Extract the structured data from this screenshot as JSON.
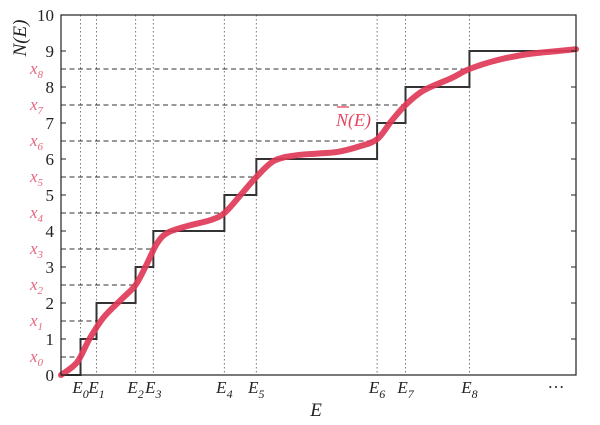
{
  "chart_data": {
    "type": "line",
    "xlabel": "E",
    "ylabel": "N(E)",
    "xlim": [
      0,
      14.5
    ],
    "ylim": [
      0,
      10
    ],
    "y_ticks": [
      "0",
      "1",
      "2",
      "3",
      "4",
      "5",
      "6",
      "7",
      "8",
      "9",
      "10"
    ],
    "energy_labels": [
      {
        "main": "E",
        "sub": "0",
        "x": 0.55
      },
      {
        "main": "E",
        "sub": "1",
        "x": 1.0
      },
      {
        "main": "E",
        "sub": "2",
        "x": 2.1
      },
      {
        "main": "E",
        "sub": "3",
        "x": 2.6
      },
      {
        "main": "E",
        "sub": "4",
        "x": 4.6
      },
      {
        "main": "E",
        "sub": "5",
        "x": 5.5
      },
      {
        "main": "E",
        "sub": "6",
        "x": 8.9
      },
      {
        "main": "E",
        "sub": "7",
        "x": 9.7
      },
      {
        "main": "E",
        "sub": "8",
        "x": 11.5
      }
    ],
    "ellipsis": "…",
    "x_labels": [
      {
        "main": "x",
        "sub": "0",
        "y": 0.5
      },
      {
        "main": "x",
        "sub": "1",
        "y": 1.5
      },
      {
        "main": "x",
        "sub": "2",
        "y": 2.5
      },
      {
        "main": "x",
        "sub": "3",
        "y": 3.5
      },
      {
        "main": "x",
        "sub": "4",
        "y": 4.5
      },
      {
        "main": "x",
        "sub": "5",
        "y": 5.5
      },
      {
        "main": "x",
        "sub": "6",
        "y": 6.5
      },
      {
        "main": "x",
        "sub": "7",
        "y": 7.5
      },
      {
        "main": "x",
        "sub": "8",
        "y": 8.5
      }
    ],
    "series": [
      {
        "name": "N(E)",
        "kind": "step",
        "color": "#333333",
        "steps_x": [
          0.55,
          1.0,
          2.1,
          2.6,
          4.6,
          5.5,
          8.9,
          9.7,
          11.5
        ],
        "x_end": 14.5
      },
      {
        "name": "N̄(E)",
        "kind": "smooth",
        "color": "#e03a57",
        "label_main": "N",
        "label_rest": "(E)",
        "points": [
          [
            0.0,
            0.0
          ],
          [
            0.45,
            0.35
          ],
          [
            0.8,
            1.0
          ],
          [
            1.2,
            1.6
          ],
          [
            1.7,
            2.1
          ],
          [
            2.1,
            2.5
          ],
          [
            2.4,
            3.05
          ],
          [
            2.7,
            3.65
          ],
          [
            3.0,
            3.95
          ],
          [
            3.6,
            4.15
          ],
          [
            4.2,
            4.3
          ],
          [
            4.6,
            4.5
          ],
          [
            5.1,
            5.05
          ],
          [
            5.5,
            5.5
          ],
          [
            6.0,
            5.95
          ],
          [
            6.6,
            6.1
          ],
          [
            7.2,
            6.15
          ],
          [
            7.8,
            6.2
          ],
          [
            8.4,
            6.35
          ],
          [
            8.9,
            6.55
          ],
          [
            9.3,
            7.05
          ],
          [
            9.7,
            7.5
          ],
          [
            10.2,
            7.9
          ],
          [
            11.0,
            8.25
          ],
          [
            11.5,
            8.5
          ],
          [
            12.3,
            8.75
          ],
          [
            13.2,
            8.92
          ],
          [
            14.0,
            9.0
          ],
          [
            14.5,
            9.05
          ]
        ]
      }
    ],
    "grid": "dotted vertical at E_n, dashed horizontal at x_n"
  }
}
